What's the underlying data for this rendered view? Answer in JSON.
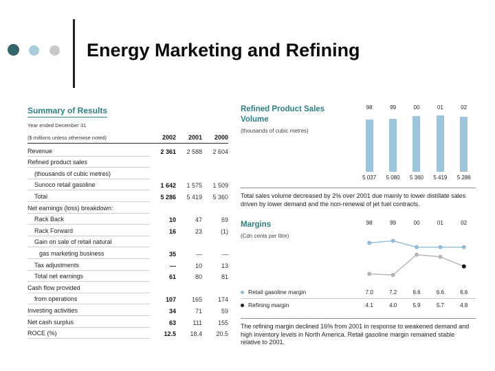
{
  "title": "Energy Marketing and Refining",
  "colors": {
    "accent_teal": "#2e7f82",
    "bar_fill": "#9cc4dc",
    "retail_line": "#8fbcd9",
    "refining_line": "#b3b3b3",
    "highlight_dot": "#1a1a1a",
    "bullet_dark": "#33666b",
    "bullet_light": "#a8ccd8",
    "bullet_gray": "#c9c9c9"
  },
  "summary": {
    "heading": "Summary of Results",
    "period_note": "Year ended December 31",
    "units_note": "($ millions unless otherwise noted)",
    "columns": [
      "2002",
      "2001",
      "2000"
    ],
    "rows": [
      {
        "label": "Revenue",
        "indent": 0,
        "values": [
          "2 361",
          "2 588",
          "2 604"
        ]
      },
      {
        "label": "Refined product sales",
        "indent": 0,
        "values": [
          "",
          "",
          ""
        ]
      },
      {
        "label": "(thousands of cubic metres)",
        "indent": 1,
        "values": [
          "",
          "",
          ""
        ]
      },
      {
        "label": "Sunoco retail gasoline",
        "indent": 1,
        "values": [
          "1 642",
          "1 575",
          "1 509"
        ]
      },
      {
        "label": "Total",
        "indent": 1,
        "values": [
          "5 286",
          "5 419",
          "5 360"
        ]
      },
      {
        "label": "Net earnings (loss) breakdown:",
        "indent": 0,
        "values": [
          "",
          "",
          ""
        ]
      },
      {
        "label": "Rack Back",
        "indent": 1,
        "values": [
          "10",
          "47",
          "69"
        ]
      },
      {
        "label": "Rack Forward",
        "indent": 1,
        "values": [
          "16",
          "23",
          "(1)"
        ]
      },
      {
        "label": "Gain on sale of retail natural",
        "indent": 1,
        "values": [
          "",
          "",
          ""
        ]
      },
      {
        "label": "gas marketing business",
        "indent": 2,
        "values": [
          "35",
          "—",
          "—"
        ]
      },
      {
        "label": "Tax adjustments",
        "indent": 1,
        "values": [
          "—",
          "10",
          "13"
        ]
      },
      {
        "label": "Total net earnings",
        "indent": 1,
        "values": [
          "61",
          "80",
          "81"
        ]
      },
      {
        "label": "Cash flow provided",
        "indent": 0,
        "values": [
          "",
          "",
          ""
        ]
      },
      {
        "label": "from operations",
        "indent": 1,
        "values": [
          "107",
          "165",
          "174"
        ]
      },
      {
        "label": "Investing activities",
        "indent": 0,
        "values": [
          "34",
          "71",
          "59"
        ]
      },
      {
        "label": "Net cash surplus",
        "indent": 0,
        "values": [
          "63",
          "111",
          "155"
        ]
      },
      {
        "label": "ROCE (%)",
        "indent": 0,
        "values": [
          "12.5",
          "18.4",
          "20.5"
        ]
      }
    ]
  },
  "sales_volume": {
    "heading": "Refined Product Sales Volume",
    "subtitle": "(thousands of cubic metres)",
    "commentary": "Total sales volume decreased by 2% over 2001 due mainly to lower distillate sales driven by lower demand and the non-renewal of jet fuel contracts."
  },
  "margins": {
    "heading": "Margins",
    "subtitle": "(Cdn cents per litre)",
    "legend": [
      {
        "label": "Retail gasoline margin",
        "values": [
          "7.0",
          "7.2",
          "6.6",
          "6.6",
          "6.6"
        ]
      },
      {
        "label": "Refining margin",
        "values": [
          "4.1",
          "4.0",
          "5.9",
          "5.7",
          "4.8"
        ]
      }
    ],
    "commentary": "The refining margin declined 16% from 2001 in response to weakened demand and high inventory levels in North America. Retail gasoline margin remained stable relative to 2001."
  },
  "chart_data": [
    {
      "type": "bar",
      "title": "Refined Product Sales Volume",
      "ylabel": "thousands of cubic metres",
      "categories": [
        "98",
        "99",
        "00",
        "01",
        "02"
      ],
      "values": [
        5037,
        5080,
        5360,
        5419,
        5286
      ],
      "value_labels": [
        "5 037",
        "5 080",
        "5 360",
        "5 419",
        "5 286"
      ],
      "ylim": [
        0,
        5419
      ],
      "grid": false,
      "legend_position": "none"
    },
    {
      "type": "line",
      "title": "Margins",
      "ylabel": "Cdn cents per litre",
      "categories": [
        "98",
        "99",
        "00",
        "01",
        "02"
      ],
      "series": [
        {
          "name": "Retail gasoline margin",
          "values": [
            7.0,
            7.2,
            6.6,
            6.6,
            6.6
          ]
        },
        {
          "name": "Refining margin",
          "values": [
            4.1,
            4.0,
            5.9,
            5.7,
            4.8
          ]
        }
      ],
      "ylim": [
        3.5,
        8.0
      ],
      "grid": false,
      "legend_position": "below"
    }
  ]
}
